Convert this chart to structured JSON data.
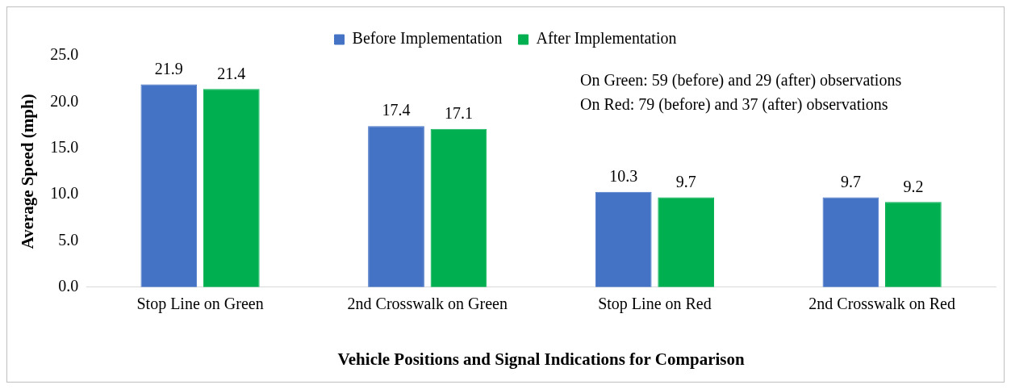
{
  "chart_data": {
    "type": "bar",
    "xlabel": "Vehicle Positions and Signal Indications for Comparison",
    "ylabel": "Average Speed (mph)",
    "categories": [
      "Stop Line on Green",
      "2nd Crosswalk on Green",
      "Stop Line on Red",
      "2nd Crosswalk on Red"
    ],
    "series": [
      {
        "name": "Before Implementation",
        "color": "#4472c4",
        "values": [
          21.9,
          17.4,
          10.3,
          9.7
        ]
      },
      {
        "name": "After Implementation",
        "color": "#00b050",
        "values": [
          21.4,
          17.1,
          9.7,
          9.2
        ]
      }
    ],
    "ylim": [
      0,
      25
    ],
    "yticks": [
      {
        "value": 0,
        "label": "0.0"
      },
      {
        "value": 5,
        "label": "5.0"
      },
      {
        "value": 10,
        "label": "10.0"
      },
      {
        "value": 15,
        "label": "15.0"
      },
      {
        "value": 20,
        "label": "20.0"
      },
      {
        "value": 25,
        "label": "25.0"
      }
    ],
    "grid": false,
    "legend": "top",
    "data_labels": true,
    "annotations": [
      "On Green: 59 (before) and 29 (after) observations",
      "On Red: 79 (before) and 37 (after) observations"
    ]
  }
}
